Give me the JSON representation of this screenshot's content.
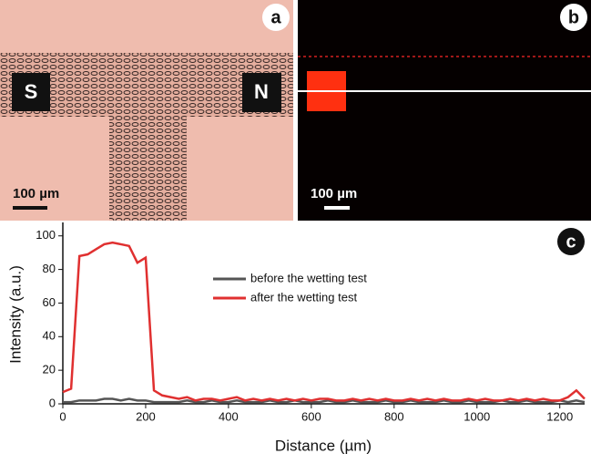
{
  "panels": {
    "a": {
      "label": "a",
      "left_pole": "S",
      "right_pole": "N",
      "scale_bar": "100 µm"
    },
    "b": {
      "label": "b",
      "scale_bar": "100 µm"
    },
    "c": {
      "label": "c"
    }
  },
  "chart_data": {
    "type": "line",
    "x_label": "Distance (µm)",
    "y_label": "Intensity (a.u.)",
    "x": [
      0,
      20,
      40,
      60,
      80,
      100,
      120,
      140,
      160,
      180,
      200,
      220,
      240,
      260,
      280,
      300,
      320,
      340,
      360,
      380,
      400,
      420,
      440,
      460,
      480,
      500,
      520,
      540,
      560,
      580,
      600,
      620,
      640,
      660,
      680,
      700,
      720,
      740,
      760,
      780,
      800,
      820,
      840,
      860,
      880,
      900,
      920,
      940,
      960,
      980,
      1000,
      1020,
      1040,
      1060,
      1080,
      1100,
      1120,
      1140,
      1160,
      1180,
      1200,
      1220,
      1240,
      1260
    ],
    "series": [
      {
        "name": "before the wetting test",
        "color": "#555555",
        "values": [
          1,
          1,
          2,
          2,
          2,
          3,
          3,
          2,
          3,
          2,
          2,
          1,
          1,
          1,
          1,
          2,
          1,
          1,
          2,
          1,
          1,
          2,
          1,
          1,
          1,
          2,
          1,
          1,
          2,
          1,
          1,
          1,
          2,
          1,
          1,
          2,
          1,
          1,
          1,
          2,
          1,
          1,
          2,
          1,
          1,
          1,
          2,
          1,
          1,
          2,
          1,
          1,
          1,
          2,
          1,
          1,
          2,
          1,
          1,
          1,
          2,
          1,
          2,
          1
        ]
      },
      {
        "name": "after the wetting test",
        "color": "#e03030",
        "values": [
          7,
          9,
          88,
          89,
          92,
          95,
          96,
          95,
          94,
          84,
          87,
          8,
          5,
          4,
          3,
          4,
          2,
          3,
          3,
          2,
          3,
          4,
          2,
          3,
          2,
          3,
          2,
          3,
          2,
          3,
          2,
          3,
          3,
          2,
          2,
          3,
          2,
          3,
          2,
          3,
          2,
          2,
          3,
          2,
          3,
          2,
          3,
          2,
          2,
          3,
          2,
          3,
          2,
          2,
          3,
          2,
          3,
          2,
          3,
          2,
          2,
          4,
          8,
          3
        ]
      }
    ],
    "xlim": [
      0,
      1260
    ],
    "ylim": [
      0,
      108
    ],
    "xticks": [
      0,
      200,
      400,
      600,
      800,
      1000,
      1200
    ],
    "yticks": [
      0,
      20,
      40,
      60,
      80,
      100
    ],
    "legend_position": "center"
  }
}
